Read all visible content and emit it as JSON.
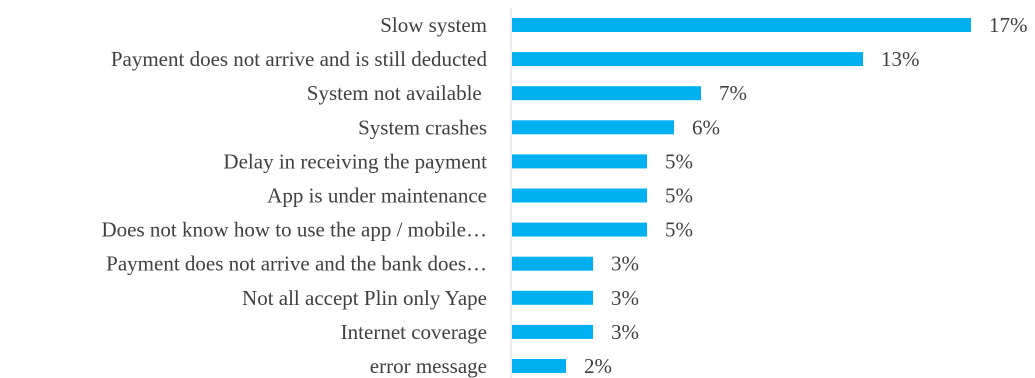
{
  "chart_data": {
    "type": "bar",
    "orientation": "horizontal",
    "categories": [
      "Slow system",
      "Payment does not arrive and is still deducted",
      "System not available ",
      "System crashes",
      "Delay in receiving the payment",
      "App is under maintenance",
      "Does not know how to use the app / mobile…",
      "Payment does not arrive and the bank does…",
      "Not all accept Plin only Yape",
      "Internet coverage",
      "error message"
    ],
    "values": [
      17,
      13,
      7,
      6,
      5,
      5,
      5,
      3,
      3,
      3,
      2
    ],
    "value_labels": [
      "17%",
      "13%",
      "7%",
      "6%",
      "5%",
      "5%",
      "5%",
      "3%",
      "3%",
      "3%",
      "2%"
    ],
    "unit": "%",
    "xlim": [
      0,
      17
    ],
    "grid": false,
    "legend": "none",
    "bar_color": "#00B0F0",
    "axis_color": "#D9D9D9",
    "text_color": "#404040"
  }
}
